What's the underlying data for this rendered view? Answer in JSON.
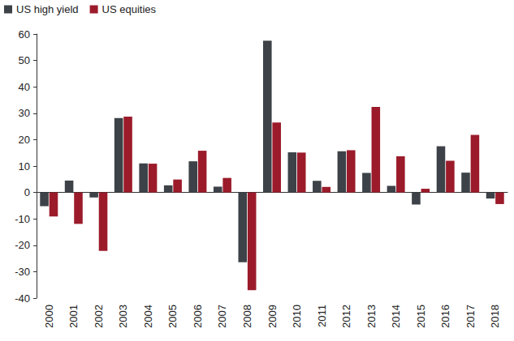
{
  "chart_data": {
    "type": "bar",
    "categories": [
      "2000",
      "2001",
      "2002",
      "2003",
      "2004",
      "2005",
      "2006",
      "2007",
      "2008",
      "2009",
      "2010",
      "2011",
      "2012",
      "2013",
      "2014",
      "2015",
      "2016",
      "2017",
      "2018"
    ],
    "series": [
      {
        "name": "US high yield",
        "color": "#3c4247",
        "values": [
          -5.2,
          4.5,
          -1.9,
          28.2,
          11.0,
          2.7,
          11.8,
          2.2,
          -26.4,
          57.5,
          15.2,
          4.4,
          15.6,
          7.4,
          2.5,
          -4.6,
          17.5,
          7.5,
          -2.3
        ]
      },
      {
        "name": "US equities",
        "color": "#9b1b2a",
        "values": [
          -9.1,
          -11.9,
          -22.1,
          28.7,
          10.9,
          4.9,
          15.8,
          5.5,
          -37.0,
          26.5,
          15.1,
          2.1,
          16.0,
          32.4,
          13.7,
          1.4,
          12.0,
          21.8,
          -4.4
        ]
      }
    ],
    "ylim": [
      -40,
      60
    ],
    "yticks": [
      -40,
      -30,
      -20,
      -10,
      0,
      10,
      20,
      30,
      40,
      50,
      60
    ],
    "grid": false,
    "legend": "top-left"
  }
}
